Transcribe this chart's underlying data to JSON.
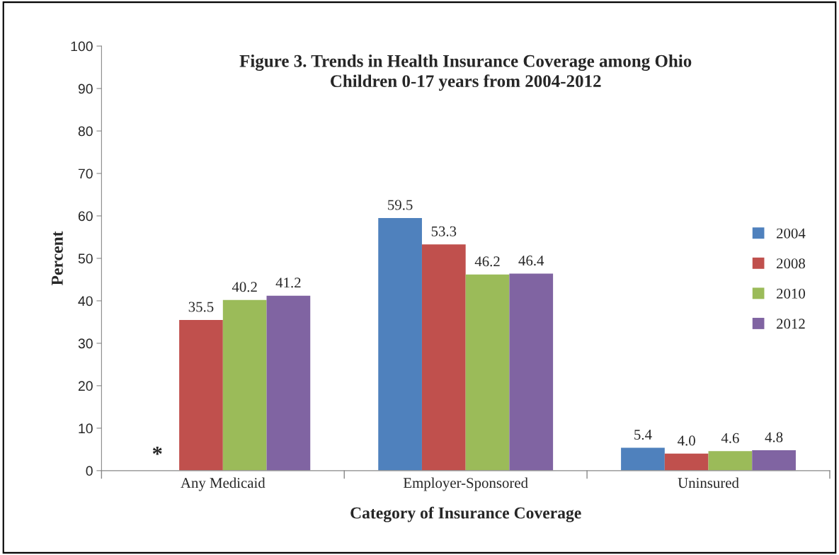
{
  "chart_data": {
    "type": "bar",
    "title": "Figure 3. Trends in Health Insurance Coverage among Ohio\nChildren 0-17 years from 2004-2012",
    "xlabel": "Category of Insurance Coverage",
    "ylabel": "Percent",
    "categories": [
      "Any Medicaid",
      "Employer-Sponsored",
      "Uninsured"
    ],
    "series": [
      {
        "name": "2004",
        "color": "#4f81bd",
        "values": [
          null,
          59.5,
          5.4
        ],
        "value_labels": [
          "*",
          "59.5",
          "5.4"
        ]
      },
      {
        "name": "2008",
        "color": "#c0504d",
        "values": [
          35.5,
          53.3,
          4.0
        ],
        "value_labels": [
          "35.5",
          "53.3",
          "4.0"
        ]
      },
      {
        "name": "2010",
        "color": "#9bbb59",
        "values": [
          40.2,
          46.2,
          4.6
        ],
        "value_labels": [
          "40.2",
          "46.2",
          "4.6"
        ]
      },
      {
        "name": "2012",
        "color": "#8064a2",
        "values": [
          41.2,
          46.4,
          4.8
        ],
        "value_labels": [
          "41.2",
          "46.4",
          "4.8"
        ]
      }
    ],
    "ylim": [
      0,
      100
    ],
    "yticks": [
      0,
      10,
      20,
      30,
      40,
      50,
      60,
      70,
      80,
      90,
      100
    ],
    "grid": false,
    "legend": "right"
  }
}
